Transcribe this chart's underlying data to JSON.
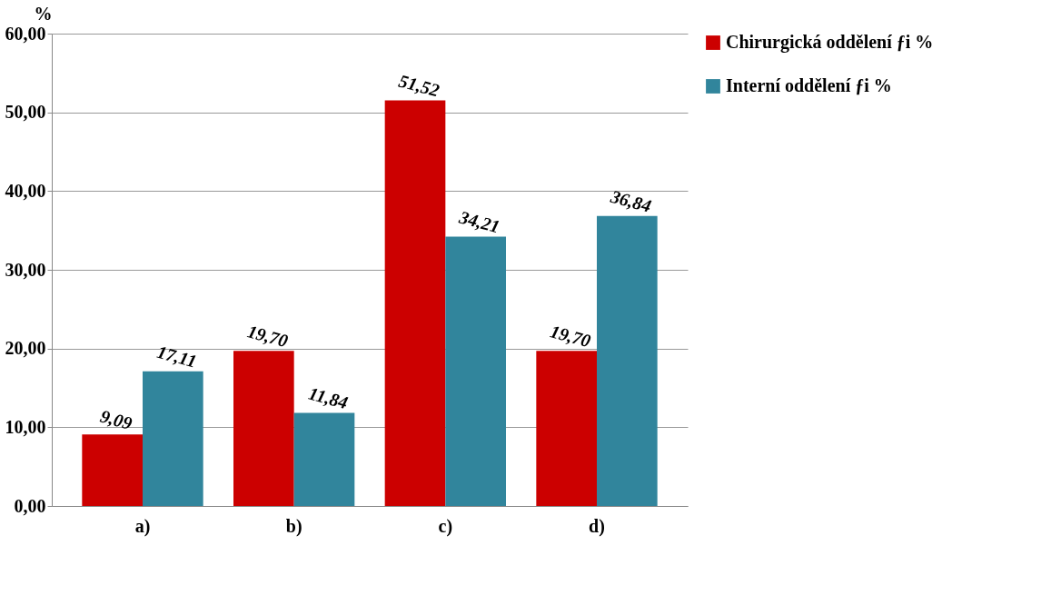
{
  "chart_data": {
    "type": "bar",
    "ylabel": "%",
    "categories": [
      "a)",
      "b)",
      "c)",
      "d)"
    ],
    "series": [
      {
        "name": "Chirurgická oddělení  ƒi %",
        "color": "#cc0000",
        "values": [
          9.09,
          19.7,
          51.52,
          19.7
        ],
        "value_labels": [
          "9,09",
          "19,70",
          "51,52",
          "19,70"
        ]
      },
      {
        "name": "Interní oddělení  ƒi %",
        "color": "#31859c",
        "values": [
          17.11,
          11.84,
          34.21,
          36.84
        ],
        "value_labels": [
          "17,11",
          "11,84",
          "34,21",
          "36,84"
        ]
      }
    ],
    "ylim": [
      0,
      60
    ],
    "yticks": [
      {
        "value": 0,
        "label": "0,00"
      },
      {
        "value": 10,
        "label": "10,00"
      },
      {
        "value": 20,
        "label": "20,00"
      },
      {
        "value": 30,
        "label": "30,00"
      },
      {
        "value": 40,
        "label": "40,00"
      },
      {
        "value": 50,
        "label": "50,00"
      },
      {
        "value": 60,
        "label": "60,00"
      }
    ],
    "grid": "y",
    "legend": "right"
  }
}
